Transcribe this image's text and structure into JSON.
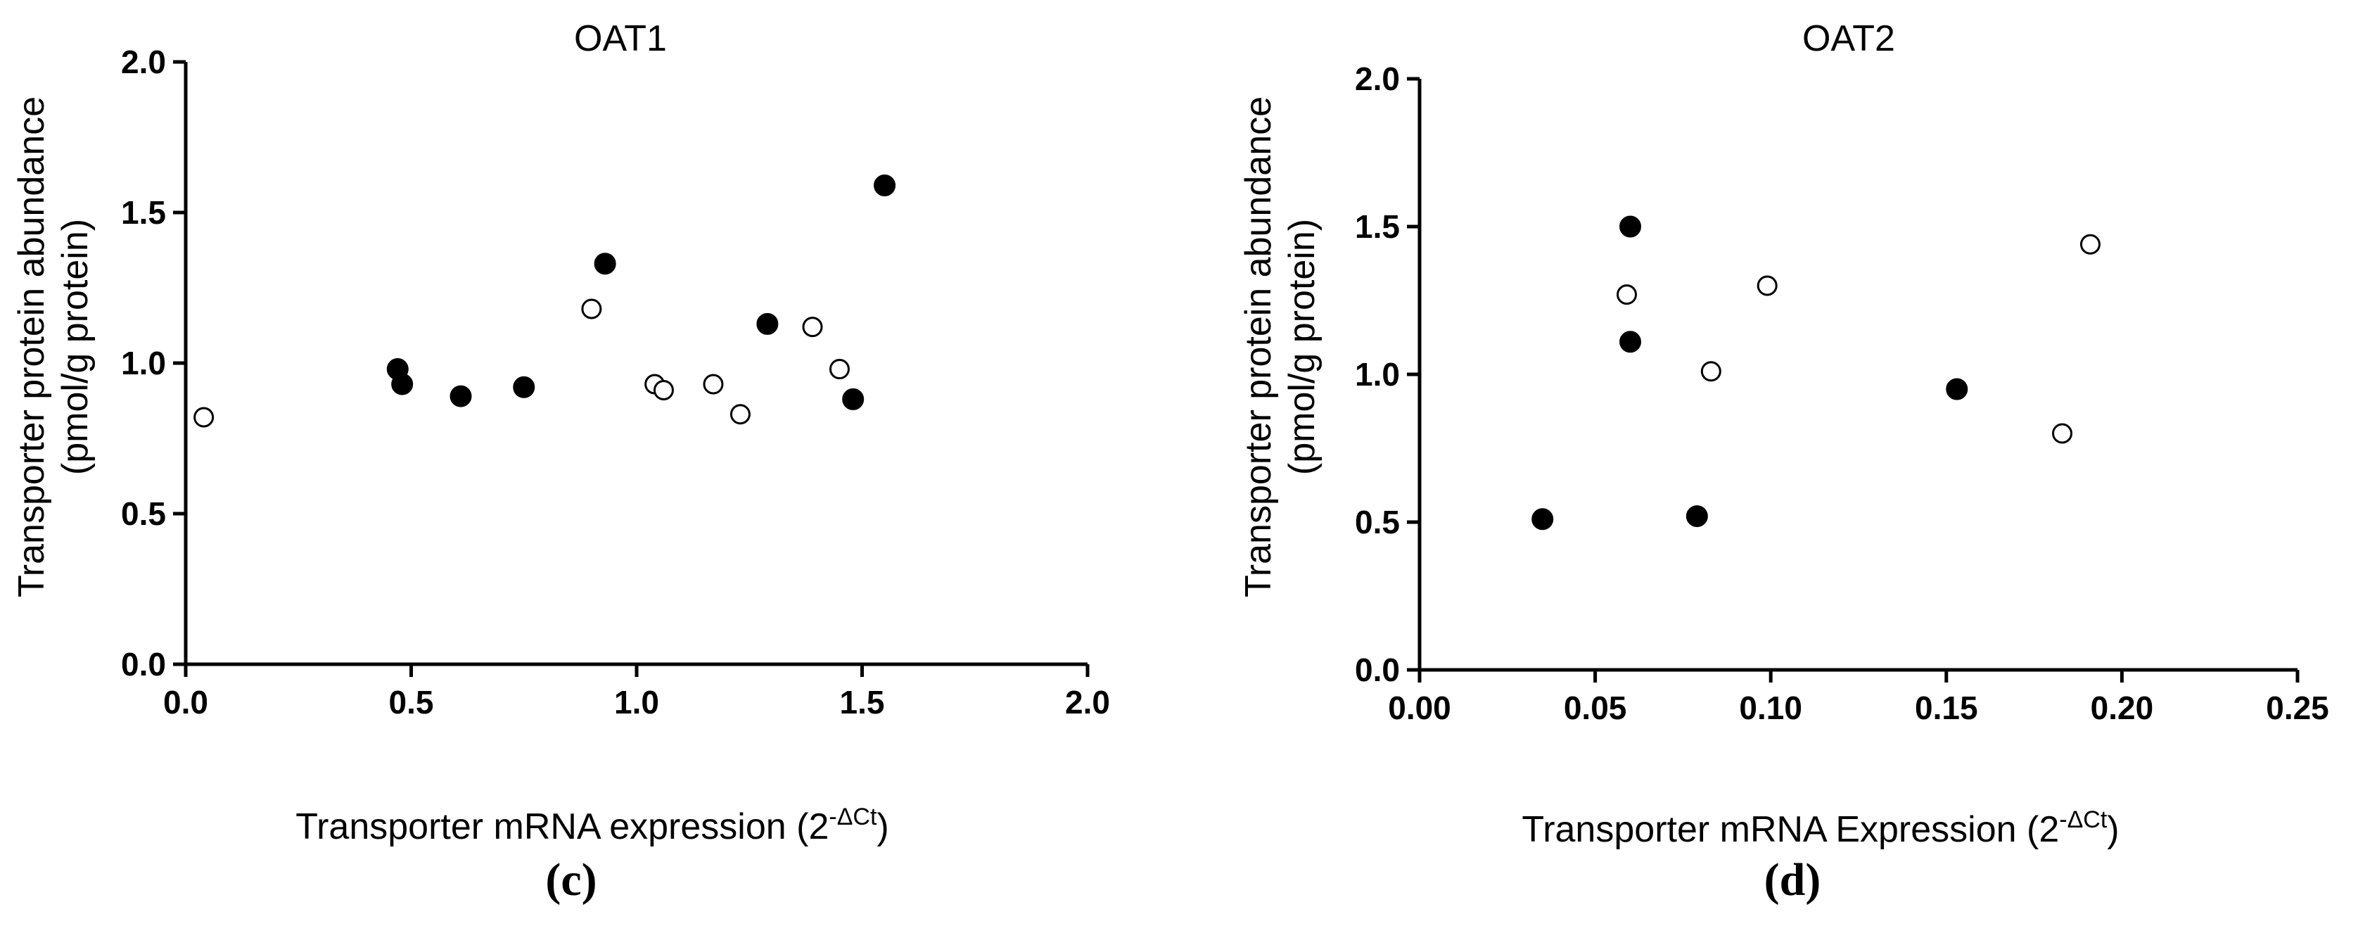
{
  "chart_data": [
    {
      "type": "scatter",
      "panel_label": "(c)",
      "title": "OAT1",
      "xlabel": "Transporter mRNA expression (2",
      "xlabel_sup": "-ΔCt",
      "xlabel_close": ")",
      "ylabel_line1": "Transporter protein abundance",
      "ylabel_line2": "(pmol/g protein)",
      "xlim": [
        0.0,
        2.0
      ],
      "ylim": [
        0.0,
        2.0
      ],
      "xticks": [
        "0.0",
        "0.5",
        "1.0",
        "1.5",
        "2.0"
      ],
      "yticks": [
        "0.0",
        "0.5",
        "1.0",
        "1.5",
        "2.0"
      ],
      "series": [
        {
          "marker": "filled-circle",
          "points": [
            [
              0.47,
              0.98
            ],
            [
              0.48,
              0.93
            ],
            [
              0.61,
              0.89
            ],
            [
              0.75,
              0.92
            ],
            [
              0.93,
              1.33
            ],
            [
              1.29,
              1.13
            ],
            [
              1.48,
              0.88
            ],
            [
              1.55,
              1.59
            ]
          ]
        },
        {
          "marker": "open-circle",
          "points": [
            [
              0.04,
              0.82
            ],
            [
              0.9,
              1.18
            ],
            [
              1.04,
              0.93
            ],
            [
              1.06,
              0.91
            ],
            [
              1.17,
              0.93
            ],
            [
              1.23,
              0.83
            ],
            [
              1.39,
              1.12
            ],
            [
              1.45,
              0.98
            ]
          ]
        }
      ]
    },
    {
      "type": "scatter",
      "panel_label": "(d)",
      "title": "OAT2",
      "xlabel": "Transporter mRNA Expression (2",
      "xlabel_sup": "-ΔCt",
      "xlabel_close": ")",
      "ylabel_line1": "Transporter protein abundance",
      "ylabel_line2": "(pmol/g protein)",
      "xlim": [
        0.0,
        0.25
      ],
      "ylim": [
        0.0,
        2.0
      ],
      "xticks": [
        "0.00",
        "0.05",
        "0.10",
        "0.15",
        "0.20",
        "0.25"
      ],
      "yticks": [
        "0.0",
        "0.5",
        "1.0",
        "1.5",
        "2.0"
      ],
      "series": [
        {
          "marker": "filled-circle",
          "points": [
            [
              0.035,
              0.51
            ],
            [
              0.06,
              1.5
            ],
            [
              0.06,
              1.11
            ],
            [
              0.079,
              0.52
            ],
            [
              0.153,
              0.95
            ]
          ]
        },
        {
          "marker": "open-circle",
          "points": [
            [
              0.059,
              1.27
            ],
            [
              0.083,
              1.01
            ],
            [
              0.099,
              1.3
            ],
            [
              0.183,
              0.8
            ],
            [
              0.191,
              1.44
            ]
          ]
        }
      ]
    }
  ]
}
